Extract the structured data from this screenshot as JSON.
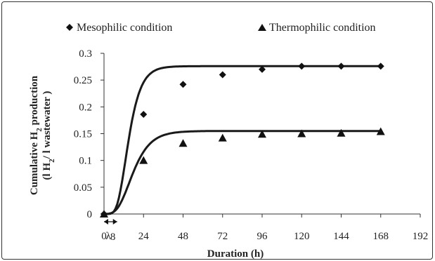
{
  "chart_data": {
    "type": "scatter",
    "xlabel": "Duration (h)",
    "ylabel": {
      "line1_prefix": "Cumulative H",
      "line1_sub": "2",
      "line1_suffix": " production",
      "line2_prefix": "(l H",
      "line2_sub": "2",
      "line2_suffix": "/ l wastewater )"
    },
    "xlim": [
      0,
      192
    ],
    "ylim": [
      0,
      0.3
    ],
    "x_ticks": [
      "0",
      "24",
      "48",
      "72",
      "96",
      "120",
      "144",
      "168",
      "192"
    ],
    "x_tick_values": [
      0,
      24,
      48,
      72,
      96,
      120,
      144,
      168,
      192
    ],
    "y_ticks": [
      "0",
      "0.05",
      "0.1",
      "0.15",
      "0.2",
      "0.25",
      "0.3"
    ],
    "y_tick_values": [
      0,
      0.05,
      0.1,
      0.15,
      0.2,
      0.25,
      0.3
    ],
    "grid": false,
    "legend_position": "top",
    "annotation": {
      "lambda_label": "λ",
      "lambda_value_label": "8",
      "lambda_value": 8
    },
    "series": [
      {
        "name": "Mesophilic condition",
        "marker": "diamond",
        "points": [
          {
            "x": 0,
            "y": 0
          },
          {
            "x": 24,
            "y": 0.186
          },
          {
            "x": 48,
            "y": 0.242
          },
          {
            "x": 72,
            "y": 0.26
          },
          {
            "x": 96,
            "y": 0.27
          },
          {
            "x": 120,
            "y": 0.276
          },
          {
            "x": 144,
            "y": 0.276
          },
          {
            "x": 168,
            "y": 0.276
          }
        ],
        "fit": {
          "P": 0.276,
          "Rm": 0.02,
          "lambda": 8
        }
      },
      {
        "name": "Thermophilic condition",
        "marker": "triangle",
        "points": [
          {
            "x": 0,
            "y": 0
          },
          {
            "x": 24,
            "y": 0.1
          },
          {
            "x": 48,
            "y": 0.132
          },
          {
            "x": 72,
            "y": 0.142
          },
          {
            "x": 96,
            "y": 0.149
          },
          {
            "x": 120,
            "y": 0.15
          },
          {
            "x": 144,
            "y": 0.151
          },
          {
            "x": 168,
            "y": 0.154
          }
        ],
        "fit": {
          "P": 0.155,
          "Rm": 0.008,
          "lambda": 8
        }
      }
    ],
    "colors": {
      "marker": "#111111",
      "fit_line": "#1a1a1a",
      "axis": "#333333"
    }
  }
}
